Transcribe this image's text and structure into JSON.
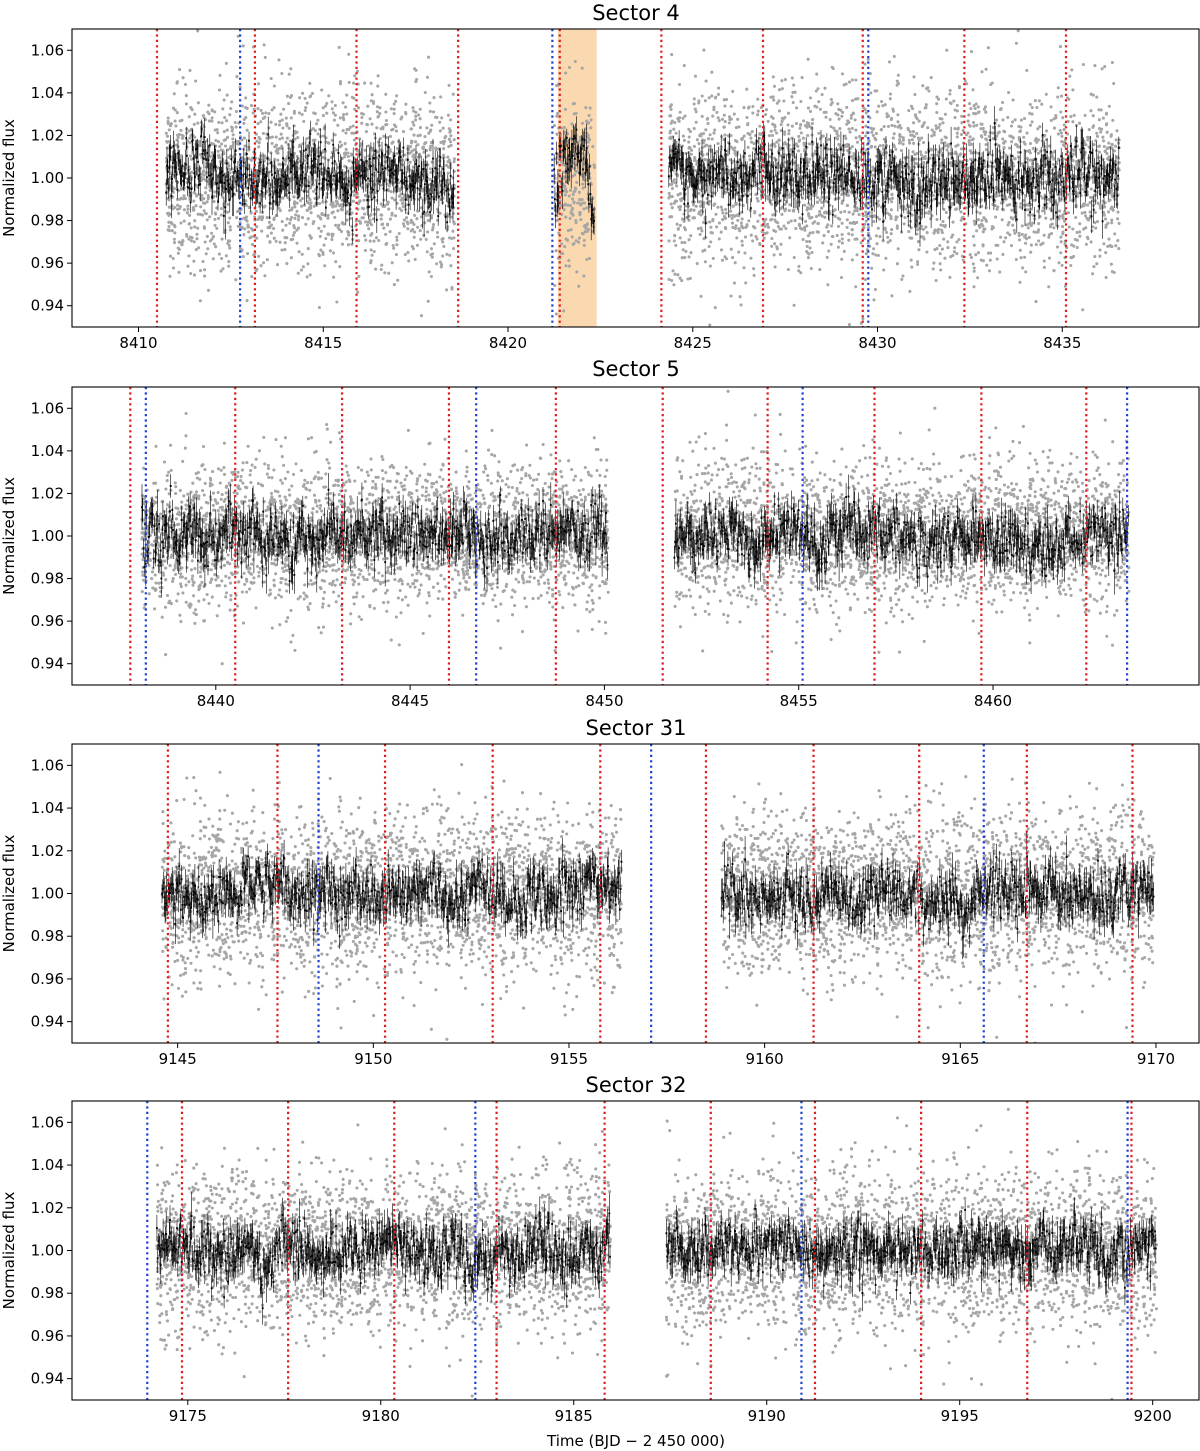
{
  "chart_data": [
    {
      "type": "scatter",
      "title": "Sector 4",
      "ylabel": "Normalized flux",
      "xlabel": "",
      "xlim": [
        8408.2,
        8438.7
      ],
      "ylim": [
        0.93,
        1.07
      ],
      "xticks": [
        8410,
        8415,
        8420,
        8425,
        8430,
        8435
      ],
      "yticks": [
        0.94,
        0.96,
        0.98,
        1.0,
        1.02,
        1.04,
        1.06
      ],
      "segments": [
        [
          8410.75,
          8418.55
        ],
        [
          8421.25,
          8422.35
        ],
        [
          8424.35,
          8436.55
        ]
      ],
      "flux_scatter": 0.021,
      "binned_scatter": 0.007,
      "red_lines": [
        8410.5,
        8413.15,
        8415.9,
        8418.65,
        8421.4,
        8424.15,
        8426.9,
        8429.6,
        8432.35,
        8435.1
      ],
      "blue_lines": [
        8412.75,
        8421.2,
        8429.75
      ],
      "shaded_region": [
        8421.35,
        8422.4
      ],
      "series": [
        {
          "name": "",
          "color": "#a6a6a6",
          "description_role": "raw"
        },
        {
          "name": "",
          "color": "#000000",
          "description_role": "binned"
        }
      ]
    },
    {
      "type": "scatter",
      "title": "Sector 5",
      "ylabel": "Normalized flux",
      "xlabel": "",
      "xlim": [
        8436.3,
        8465.3
      ],
      "ylim": [
        0.93,
        1.07
      ],
      "xticks": [
        8440,
        8445,
        8450,
        8455,
        8460
      ],
      "yticks": [
        0.94,
        0.96,
        0.98,
        1.0,
        1.02,
        1.04,
        1.06
      ],
      "segments": [
        [
          8438.1,
          8450.1
        ],
        [
          8451.8,
          8463.5
        ]
      ],
      "flux_scatter": 0.017,
      "binned_scatter": 0.006,
      "red_lines": [
        8437.8,
        8440.5,
        8443.25,
        8446.0,
        8448.75,
        8451.5,
        8454.2,
        8456.95,
        8459.7,
        8462.4
      ],
      "blue_lines": [
        8438.2,
        8446.7,
        8455.1,
        8463.45
      ],
      "shaded_region": null,
      "series": [
        {
          "name": "",
          "color": "#a6a6a6"
        },
        {
          "name": "",
          "color": "#000000"
        }
      ]
    },
    {
      "type": "scatter",
      "title": "Sector 31",
      "ylabel": "Normalized flux",
      "xlabel": "",
      "xlim": [
        9142.3,
        9171.1
      ],
      "ylim": [
        0.93,
        1.07
      ],
      "xticks": [
        9145,
        9150,
        9155,
        9160,
        9165,
        9170
      ],
      "yticks": [
        0.94,
        0.96,
        0.98,
        1.0,
        1.02,
        1.04,
        1.06
      ],
      "segments": [
        [
          9144.6,
          9156.35
        ],
        [
          9158.9,
          9169.95
        ]
      ],
      "flux_scatter": 0.019,
      "binned_scatter": 0.006,
      "red_lines": [
        9144.75,
        9147.55,
        9150.3,
        9153.05,
        9155.8,
        9158.5,
        9161.25,
        9163.95,
        9166.7,
        9169.4
      ],
      "blue_lines": [
        9148.6,
        9157.1,
        9165.6
      ],
      "shaded_region": null,
      "series": [
        {
          "name": "",
          "color": "#a6a6a6"
        },
        {
          "name": "",
          "color": "#000000"
        }
      ]
    },
    {
      "type": "scatter",
      "title": "Sector 32",
      "ylabel": "Normalized flux",
      "xlabel": "Time (BJD − 2 450 000)",
      "xlim": [
        9172.0,
        9201.2
      ],
      "ylim": [
        0.93,
        1.07
      ],
      "xticks": [
        9175,
        9180,
        9185,
        9190,
        9195,
        9200
      ],
      "yticks": [
        0.94,
        0.96,
        0.98,
        1.0,
        1.02,
        1.04,
        1.06
      ],
      "segments": [
        [
          9174.2,
          9185.95
        ],
        [
          9187.4,
          9200.1
        ]
      ],
      "flux_scatter": 0.018,
      "binned_scatter": 0.006,
      "red_lines": [
        9174.85,
        9177.6,
        9180.35,
        9183.0,
        9185.8,
        9188.55,
        9191.25,
        9194.0,
        9196.75,
        9199.45
      ],
      "blue_lines": [
        9173.95,
        9182.45,
        9190.9,
        9199.35
      ],
      "shaded_region": null,
      "series": [
        {
          "name": "",
          "color": "#a6a6a6"
        },
        {
          "name": "",
          "color": "#000000"
        }
      ]
    }
  ],
  "colors": {
    "raw_points": "#a6a6a6",
    "binned_points": "#000000",
    "red_marker_lines": "#e31a1c",
    "blue_marker_lines": "#1f3fd6",
    "shaded_region": "#f8cc96"
  }
}
